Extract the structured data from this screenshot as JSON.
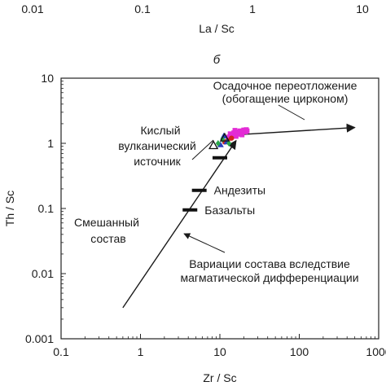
{
  "top_panel": {
    "x_tick_labels": [
      "0.01",
      "0.1",
      "1",
      "10"
    ],
    "x_tick_values": [
      0.01,
      0.1,
      1,
      10
    ],
    "xlabel": "La / Sc"
  },
  "panel_letter": "б",
  "chart_data": {
    "type": "scatter",
    "title": "",
    "xlabel": "Zr / Sc",
    "ylabel": "Th / Sc",
    "xscale": "log",
    "yscale": "log",
    "xlim": [
      0.1,
      1000
    ],
    "ylim": [
      0.001,
      10
    ],
    "x_ticks": [
      0.1,
      1,
      10,
      100,
      1000
    ],
    "y_ticks": [
      0.001,
      0.01,
      0.1,
      1,
      10
    ],
    "x_tick_labels": [
      "0.1",
      "1",
      "10",
      "100",
      "1000"
    ],
    "y_tick_labels": [
      "0.001",
      "0.01",
      "0.1",
      "1",
      "10"
    ],
    "grid": false,
    "trends": [
      {
        "id": "magmatic",
        "points": [
          [
            0.6,
            0.003
          ],
          [
            16,
            1.1
          ]
        ]
      },
      {
        "id": "sedimentary",
        "points": [
          [
            16,
            1.35
          ],
          [
            500,
            1.75
          ]
        ]
      }
    ],
    "reference_marks": [
      {
        "label": "Андезиты",
        "x": 5.5,
        "y": 0.19
      },
      {
        "label": "Базальты",
        "x": 4.2,
        "y": 0.095
      },
      {
        "label": "",
        "x": 10,
        "y": 0.6
      }
    ],
    "series": [
      {
        "marker": "square",
        "color": "#e32bd5",
        "points": [
          [
            13.5,
            1.4
          ],
          [
            15,
            1.45
          ],
          [
            16.5,
            1.5
          ],
          [
            18,
            1.55
          ],
          [
            19.5,
            1.55
          ],
          [
            21,
            1.5
          ],
          [
            22,
            1.55
          ],
          [
            17,
            1.38
          ],
          [
            14.5,
            1.32
          ],
          [
            20,
            1.6
          ],
          [
            15.5,
            1.58
          ],
          [
            18.5,
            1.45
          ],
          [
            16,
            1.28
          ],
          [
            13,
            1.25
          ],
          [
            21.5,
            1.62
          ],
          [
            19,
            1.35
          ]
        ]
      },
      {
        "marker": "circle",
        "color": "#d42020",
        "points": [
          [
            12.5,
            1.1
          ],
          [
            14,
            1.2
          ],
          [
            11.5,
            1.05
          ]
        ]
      },
      {
        "marker": "triangle",
        "color": "#2a3fc0",
        "points": [
          [
            11.2,
            1.3
          ],
          [
            12.2,
            1.05
          ],
          [
            10.2,
            0.95
          ]
        ]
      },
      {
        "marker": "diamond",
        "color": "#2aa84a",
        "points": [
          [
            9.5,
            1.0
          ],
          [
            10.8,
            1.15
          ],
          [
            13,
            1.0
          ]
        ]
      },
      {
        "marker": "triangle-open",
        "color": "#111111",
        "points": [
          [
            8.3,
            0.93
          ],
          [
            11.5,
            1.22
          ]
        ]
      }
    ],
    "annotations": [
      {
        "text": "Осадочное переотложение",
        "group": "sed"
      },
      {
        "text": "(обогащение цирконом)",
        "group": "sed"
      },
      {
        "text": "Кислый",
        "group": "acid"
      },
      {
        "text": "вулканический",
        "group": "acid"
      },
      {
        "text": "источник",
        "group": "acid"
      },
      {
        "text": "Смешанный",
        "group": "mix"
      },
      {
        "text": "состав",
        "group": "mix"
      },
      {
        "text": "Вариации состава вследствие",
        "group": "var"
      },
      {
        "text": "магматической дифференциации",
        "group": "var"
      }
    ]
  }
}
